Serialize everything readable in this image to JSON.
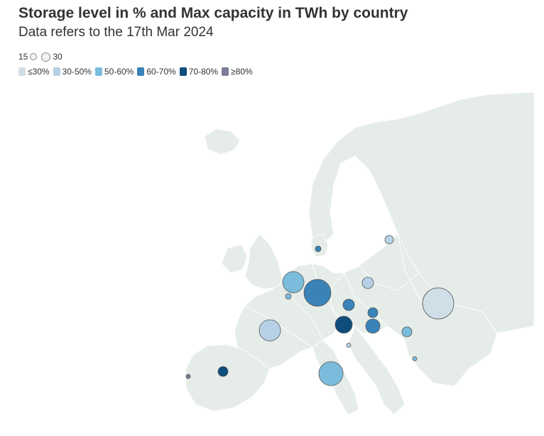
{
  "title": "Storage level in % and Max capacity in TWh by country",
  "subtitle": "Data refers to the 17th Mar 2024",
  "size_legend": {
    "small_value": "15",
    "large_value": "30"
  },
  "color_legend": [
    {
      "label": "≤30%",
      "color": "#d0dee8"
    },
    {
      "label": "30-50%",
      "color": "#b6d1e5"
    },
    {
      "label": "50-60%",
      "color": "#7bbcdc"
    },
    {
      "label": "60-70%",
      "color": "#3983b8"
    },
    {
      "label": "70-80%",
      "color": "#0f4d7d"
    },
    {
      "label": "≥80%",
      "color": "#7a7d97"
    }
  ],
  "colors": {
    "land": "#e6ede9",
    "border": "#ffffff",
    "bubble_stroke": "#555555"
  }
}
